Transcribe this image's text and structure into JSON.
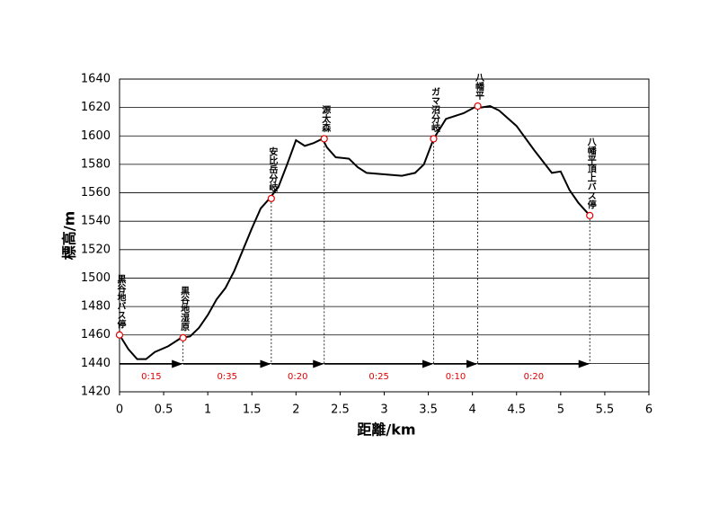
{
  "chart_data": {
    "type": "line",
    "x_label": "距離/km",
    "y_label": "標高/m",
    "x": [
      0,
      0.1,
      0.2,
      0.3,
      0.4,
      0.55,
      0.7,
      0.8,
      0.9,
      1.0,
      1.1,
      1.2,
      1.3,
      1.4,
      1.5,
      1.6,
      1.7,
      1.8,
      1.9,
      2.0,
      2.1,
      2.2,
      2.3,
      2.35,
      2.45,
      2.6,
      2.7,
      2.8,
      3.0,
      3.2,
      3.35,
      3.45,
      3.56,
      3.7,
      3.9,
      4.05,
      4.1,
      4.2,
      4.3,
      4.5,
      4.7,
      4.9,
      5.0,
      5.1,
      5.2,
      5.33
    ],
    "values": [
      1460,
      1450,
      1443,
      1443,
      1448,
      1452,
      1458,
      1459,
      1465,
      1474,
      1485,
      1493,
      1505,
      1520,
      1535,
      1549,
      1556,
      1564,
      1580,
      1597,
      1593,
      1595,
      1598,
      1592,
      1585,
      1584,
      1578,
      1574,
      1573,
      1572,
      1574,
      1580,
      1598,
      1612,
      1616,
      1621,
      1620,
      1621,
      1618,
      1607,
      1590,
      1574,
      1575,
      1562,
      1553,
      1544
    ],
    "color": "#000000",
    "xlim": [
      0,
      6
    ],
    "xticks": [
      0,
      0.5,
      1,
      1.5,
      2,
      2.5,
      3,
      3.5,
      4,
      4.5,
      5,
      5.5,
      6
    ],
    "ylim": [
      1420,
      1640
    ],
    "yticks": [
      1420,
      1440,
      1460,
      1480,
      1500,
      1520,
      1540,
      1560,
      1580,
      1600,
      1620,
      1640
    ],
    "grid": true,
    "stops": [
      {
        "label": "黒谷地バス停",
        "x": 0,
        "y": 1460
      },
      {
        "label": "黒谷地湿原",
        "x": 0.72,
        "y": 1458
      },
      {
        "label": "安比岳分岐",
        "x": 1.72,
        "y": 1556
      },
      {
        "label": "源太森",
        "x": 2.32,
        "y": 1598
      },
      {
        "label": "ガマ沼分岐",
        "x": 3.56,
        "y": 1598
      },
      {
        "label": "八幡平",
        "x": 4.06,
        "y": 1621
      },
      {
        "label": "八幡平頂上バス停",
        "x": 5.33,
        "y": 1544
      }
    ],
    "stop_color": "#e00000",
    "segment_times": [
      "0:15",
      "0:35",
      "0:20",
      "0:25",
      "0:10",
      "0:20"
    ]
  }
}
